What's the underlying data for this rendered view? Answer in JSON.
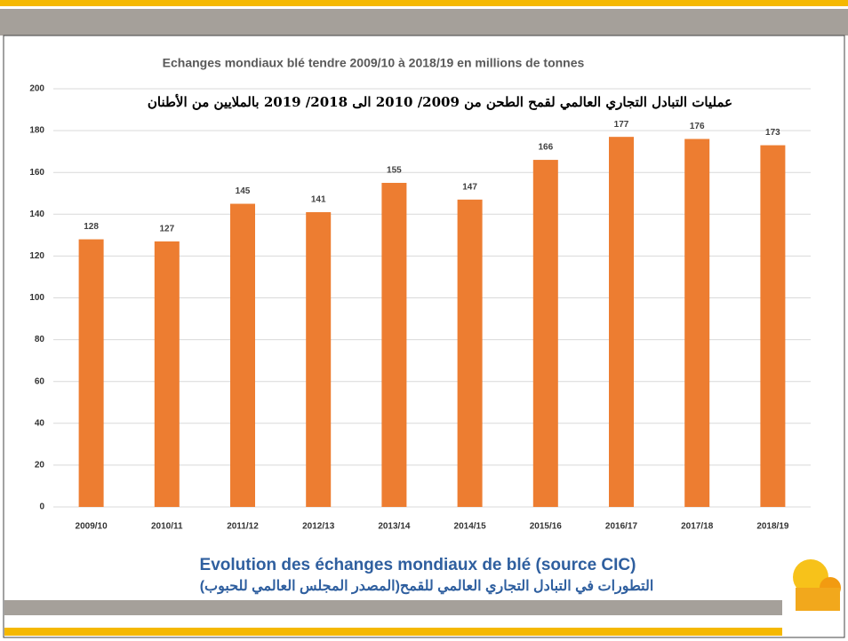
{
  "chart_data": {
    "type": "bar",
    "title": "Echanges mondiaux blé tendre 2009/10 à 2018/19 en millions de tonnes",
    "subtitle": "عمليات التبادل التجاري العالمي لقمح الطحن من 2009/ 2010 الى 2018/ 2019 بالملايين من الأطنان",
    "categories": [
      "2009/10",
      "2010/11",
      "2011/12",
      "2012/13",
      "2013/14",
      "2014/15",
      "2015/16",
      "2016/17",
      "2017/18",
      "2018/19"
    ],
    "values": [
      128,
      127,
      145,
      141,
      155,
      147,
      166,
      177,
      176,
      173
    ],
    "color": "#ed7d31",
    "ylim": [
      0,
      200
    ],
    "yticks": [
      0,
      20,
      40,
      60,
      80,
      100,
      120,
      140,
      160,
      180,
      200
    ],
    "grid": true
  },
  "caption": {
    "french": "Evolution des échanges mondiaux de blé (source CIC)",
    "arabic": "التطورات في التبادل التجاري العالمي للقمح(المصدر المجلس العالمي للحبوب)"
  }
}
